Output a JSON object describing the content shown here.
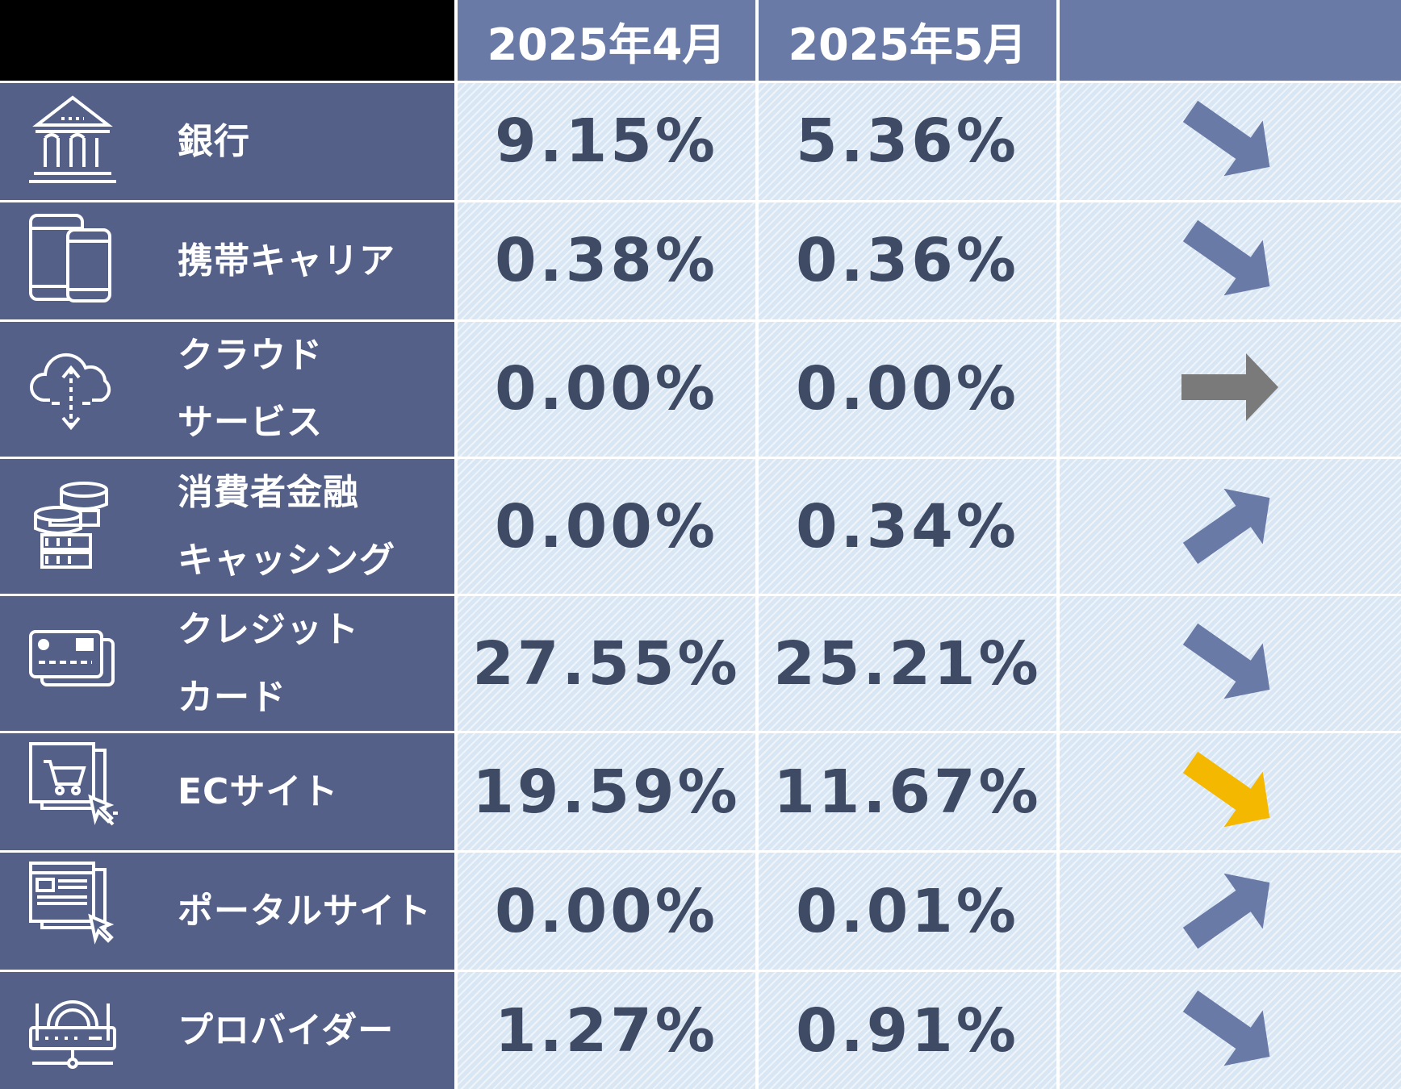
{
  "chart_data": {
    "type": "table",
    "columns": [
      "2025年4月",
      "2025年5月"
    ],
    "rows": [
      {
        "label": "銀行",
        "icon": "bank-icon",
        "values": [
          "9.15%",
          "5.36%"
        ],
        "trend": "down",
        "trend_color": "#6a7aa6"
      },
      {
        "label": "携帯キャリア",
        "icon": "mobile-devices-icon",
        "values": [
          "0.38%",
          "0.36%"
        ],
        "trend": "down",
        "trend_color": "#6a7aa6"
      },
      {
        "label": "クラウド\nサービス",
        "icon": "cloud-icon",
        "values": [
          "0.00%",
          "0.00%"
        ],
        "trend": "flat",
        "trend_color": "#7a7a7a"
      },
      {
        "label": "消費者金融\nキャッシング",
        "icon": "coins-icon",
        "values": [
          "0.00%",
          "0.34%"
        ],
        "trend": "up",
        "trend_color": "#6a7aa6"
      },
      {
        "label": "クレジット\nカード",
        "icon": "credit-card-icon",
        "values": [
          "27.55%",
          "25.21%"
        ],
        "trend": "down",
        "trend_color": "#6a7aa6"
      },
      {
        "label": "ECサイト",
        "icon": "shopping-cart-icon",
        "values": [
          "19.59%",
          "11.67%"
        ],
        "trend": "down",
        "trend_color": "#f5b800"
      },
      {
        "label": "ポータルサイト",
        "icon": "portal-icon",
        "values": [
          "0.00%",
          "0.01%"
        ],
        "trend": "up",
        "trend_color": "#6a7aa6"
      },
      {
        "label": "プロバイダー",
        "icon": "router-icon",
        "values": [
          "1.27%",
          "0.91%"
        ],
        "trend": "down",
        "trend_color": "#6a7aa6"
      }
    ]
  },
  "colors": {
    "label_bg": "#546087",
    "header_bg": "#6a7aa6",
    "value_bg": "#d9e6f4",
    "value_text": "#3f4a64"
  }
}
